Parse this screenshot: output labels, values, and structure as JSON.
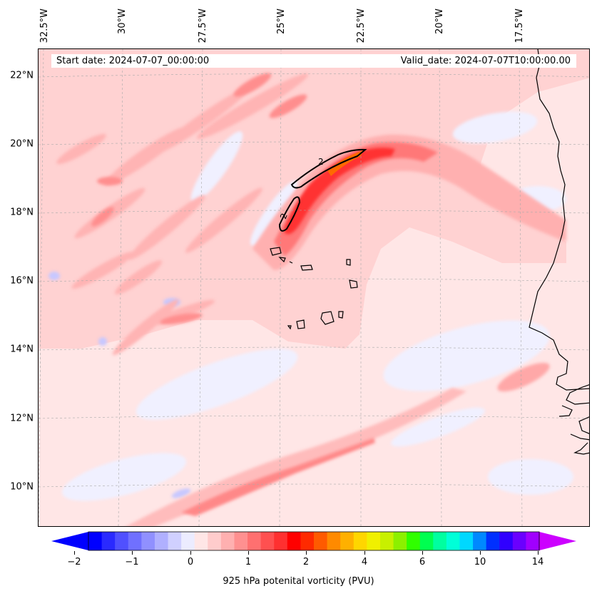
{
  "map": {
    "title_left": "Start date: 2024-07-07_00:00:00",
    "title_right": "Valid_date: 2024-07-07T10:00:00.00",
    "lat_labels": [
      "22°N",
      "20°N",
      "18°N",
      "16°N",
      "14°N",
      "12°N",
      "10°N"
    ],
    "lon_labels": [
      "32.5°W",
      "30°W",
      "27.5°W",
      "25°W",
      "22.5°W",
      "20°W",
      "17.5°W"
    ],
    "contour_labels": [
      "2",
      "2"
    ],
    "extent": {
      "lon_min": -32.7,
      "lon_max": -15.3,
      "lat_min": 8.9,
      "lat_max": 22.8
    },
    "region": "Cape Verde and West African coast"
  },
  "colorbar": {
    "label": "925 hPa potenital vorticity (PVU)",
    "tick_labels": [
      "−2",
      "−1",
      "0",
      "1",
      "2",
      "4",
      "6",
      "10",
      "14"
    ],
    "colors": [
      "#0000ff",
      "#2a2aff",
      "#5050ff",
      "#7070ff",
      "#9090ff",
      "#b0b0ff",
      "#d0d0ff",
      "#ececff",
      "#ffe6e6",
      "#ffcccc",
      "#ffb0b0",
      "#ff9090",
      "#ff7070",
      "#ff5050",
      "#ff3030",
      "#ff0000",
      "#ff2a00",
      "#ff5a00",
      "#ff8a00",
      "#ffb000",
      "#ffd600",
      "#f0f000",
      "#c8f000",
      "#8cf000",
      "#30ff00",
      "#00ff50",
      "#00ffa0",
      "#00ffd8",
      "#00d8ff",
      "#0088ff",
      "#0030ff",
      "#3000ff",
      "#6a00ff",
      "#a000ff"
    ],
    "over_color": "#cc00ff",
    "under_color": "#0000ff"
  }
}
